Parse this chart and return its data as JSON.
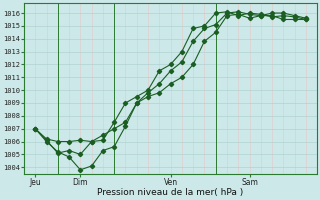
{
  "title": "",
  "xlabel": "Pression niveau de la mer( hPa )",
  "ylim": [
    1003.5,
    1016.8
  ],
  "yticks": [
    1004,
    1005,
    1006,
    1007,
    1008,
    1009,
    1010,
    1011,
    1012,
    1013,
    1014,
    1015,
    1016
  ],
  "bg_color": "#cce8e8",
  "grid_color_h": "#aacece",
  "grid_color_v": "#e8c8c8",
  "line_color": "#1a5e22",
  "marker": "D",
  "markersize": 2.2,
  "linewidth": 0.8,
  "xtick_labels": [
    "Jeu",
    "Dim",
    "Ven",
    "Sam"
  ],
  "xtick_positions": [
    0.5,
    2.5,
    6.5,
    10.0
  ],
  "day_vlines": [
    1.5,
    4.0,
    8.5
  ],
  "xlim": [
    0,
    13.0
  ],
  "series_x": [
    [
      0.5,
      1.0,
      1.5,
      2.0,
      2.5,
      3.0,
      3.5,
      4.0,
      4.5,
      5.0,
      5.5,
      6.0,
      6.5,
      7.0,
      7.5,
      8.0,
      8.5,
      9.0,
      9.5,
      10.0,
      10.5,
      11.0,
      11.5,
      12.0,
      12.5
    ],
    [
      0.5,
      1.0,
      1.5,
      2.0,
      2.5,
      3.0,
      3.5,
      4.0,
      4.5,
      5.0,
      5.5,
      6.0,
      6.5,
      7.0,
      7.5,
      8.0,
      8.5,
      9.0,
      9.5,
      10.0,
      10.5,
      11.0,
      11.5,
      12.0,
      12.5
    ],
    [
      0.5,
      1.0,
      1.5,
      2.0,
      2.5,
      3.0,
      3.5,
      4.0,
      4.5,
      5.0,
      5.5,
      6.0,
      6.5,
      7.0,
      7.5,
      8.0,
      8.5,
      9.0,
      9.5,
      10.0,
      10.5,
      11.0,
      11.5,
      12.0,
      12.5
    ]
  ],
  "series": [
    [
      1007.0,
      1006.2,
      1006.0,
      1006.0,
      1006.1,
      1006.0,
      1006.5,
      1007.0,
      1007.5,
      1009.0,
      1009.8,
      1010.5,
      1011.5,
      1012.2,
      1013.8,
      1014.8,
      1015.1,
      1016.0,
      1016.1,
      1015.9,
      1015.8,
      1016.0,
      1016.0,
      1015.8,
      1015.6
    ],
    [
      1007.0,
      1006.0,
      1005.2,
      1004.8,
      1003.8,
      1004.1,
      1005.3,
      1005.6,
      1007.2,
      1009.0,
      1009.5,
      1009.8,
      1010.5,
      1011.0,
      1012.0,
      1013.8,
      1014.5,
      1015.8,
      1015.9,
      1015.6,
      1015.8,
      1015.8,
      1015.5,
      1015.5,
      1015.5
    ],
    [
      1007.0,
      1006.1,
      1005.1,
      1005.3,
      1005.0,
      1006.0,
      1006.1,
      1007.5,
      1009.0,
      1009.5,
      1010.0,
      1011.5,
      1012.0,
      1013.0,
      1014.8,
      1015.0,
      1016.0,
      1016.1,
      1015.8,
      1016.0,
      1015.9,
      1015.7,
      1015.8,
      1015.7,
      1015.5
    ]
  ]
}
